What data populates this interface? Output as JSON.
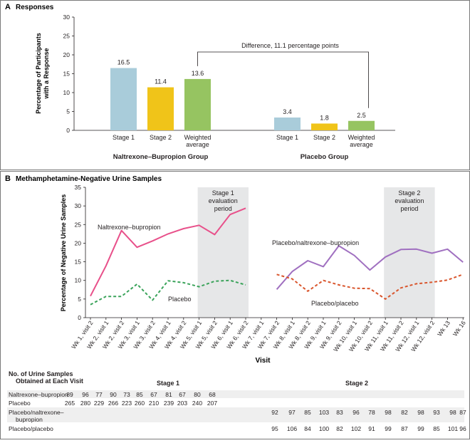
{
  "colors": {
    "stage1": "#a9ccda",
    "stage2": "#f0c419",
    "weighted": "#96c461",
    "nb_line": "#e8508a",
    "placebo_line": "#3aa35a",
    "pl_nb_line": "#a070c0",
    "pl_pl_line": "#d9552c",
    "shade": "#e6e7e8",
    "table_stripe": "#efefef"
  },
  "chart_data": [
    {
      "type": "bar",
      "panel_label": "A",
      "title": "Responses",
      "ylabel": "Percentage of Participants with a Response",
      "ylabel_lines": [
        "Percentage of Participants",
        "with a Response"
      ],
      "ylim": [
        0,
        30
      ],
      "yticks": [
        "0",
        "5",
        "10",
        "15",
        "20",
        "25",
        "30"
      ],
      "groups": [
        {
          "name": "Naltrexone–Bupropion Group",
          "bars": [
            {
              "label": "Stage 1",
              "value": 16.5,
              "value_label": "16.5",
              "color": "#a9ccda"
            },
            {
              "label": "Stage 2",
              "value": 11.4,
              "value_label": "11.4",
              "color": "#f0c419"
            },
            {
              "label": "Weighted average",
              "label_lines": [
                "Weighted",
                "average"
              ],
              "value": 13.6,
              "value_label": "13.6",
              "color": "#96c461"
            }
          ]
        },
        {
          "name": "Placebo Group",
          "bars": [
            {
              "label": "Stage 1",
              "value": 3.4,
              "value_label": "3.4",
              "color": "#a9ccda"
            },
            {
              "label": "Stage 2",
              "value": 1.8,
              "value_label": "1.8",
              "color": "#f0c419"
            },
            {
              "label": "Weighted average",
              "label_lines": [
                "Weighted",
                "average"
              ],
              "value": 2.5,
              "value_label": "2.5",
              "color": "#96c461"
            }
          ]
        }
      ],
      "annotation": "Difference, 11.1 percentage points"
    },
    {
      "type": "line",
      "panel_label": "B",
      "title": "Methamphetamine-Negative Urine Samples",
      "ylabel": "Percentage of Negative Urine Samples",
      "xlabel": "Visit",
      "ylim": [
        0,
        35
      ],
      "yticks": [
        "0",
        "5",
        "10",
        "15",
        "20",
        "25",
        "30",
        "35"
      ],
      "x_categories": [
        "Wk 1, visit 2",
        "Wk 2, visit 1",
        "Wk 2, visit 2",
        "Wk 3, visit 1",
        "Wk 3, visit 2",
        "Wk 4, visit 1",
        "Wk 4, visit 2",
        "Wk 5, visit 1",
        "Wk 5, visit 2",
        "Wk 6, visit 1",
        "Wk 6, visit 2",
        "Wk 7, visit 1",
        "Wk 7, visit 2",
        "Wk 8, visit 1",
        "Wk 8, visit 2",
        "Wk 9, visit 1",
        "Wk 9, visit 2",
        "Wk 10, visit 1",
        "Wk 10, visit 2",
        "Wk 11, visit 1",
        "Wk 11, visit 2",
        "Wk 12, visit 1",
        "Wk 12, visit 2",
        "Wk 13",
        "Wk 16"
      ],
      "shaded_periods": [
        {
          "label_lines": [
            "Stage 1",
            "evaluation",
            "period"
          ],
          "from_index": 7,
          "to_index": 10
        },
        {
          "label_lines": [
            "Stage 2",
            "evaluation",
            "period"
          ],
          "from_index": 19,
          "to_index": 22
        }
      ],
      "series": [
        {
          "name": "Naltrexone–bupropion",
          "style": "solid",
          "color": "#e8508a",
          "start_index": 0,
          "values": [
            5.8,
            13.9,
            23.4,
            18.9,
            20.6,
            22.5,
            23.9,
            24.8,
            22.3,
            27.7,
            29.4
          ]
        },
        {
          "name": "Placebo",
          "style": "dashed",
          "color": "#3aa35a",
          "start_index": 0,
          "values": [
            3.5,
            5.7,
            5.7,
            9.0,
            4.7,
            9.9,
            9.4,
            8.3,
            9.8,
            10.0,
            8.8
          ]
        },
        {
          "name": "Placebo/naltrexone–bupropion",
          "style": "solid",
          "color": "#a070c0",
          "start_index": 12,
          "values": [
            7.6,
            12.4,
            15.3,
            13.7,
            19.3,
            16.7,
            12.8,
            16.3,
            18.3,
            18.4,
            17.3,
            18.4,
            14.9
          ]
        },
        {
          "name": "Placebo/placebo",
          "style": "dashed",
          "color": "#d9552c",
          "start_index": 12,
          "values": [
            11.6,
            10.4,
            7.1,
            10.0,
            8.8,
            7.9,
            7.8,
            5.0,
            8.0,
            9.1,
            9.5,
            10.1,
            11.6
          ]
        }
      ],
      "series_labels": [
        {
          "text": "Naltrexone–bupropion"
        },
        {
          "text": "Placebo"
        },
        {
          "text": "Placebo/naltrexone–bupropion"
        },
        {
          "text": "Placebo/placebo"
        }
      ]
    },
    {
      "type": "table",
      "title_lines": [
        "No. of Urine Samples",
        "Obtained at Each Visit"
      ],
      "stage_headers": [
        "Stage 1",
        "Stage 2"
      ],
      "rows": [
        {
          "label_lines": [
            "Naltrexone–bupropion"
          ],
          "stage": 1,
          "values": [
            "89",
            "96",
            "77",
            "90",
            "73",
            "85",
            "67",
            "81",
            "67",
            "80",
            "68"
          ]
        },
        {
          "label_lines": [
            "Placebo"
          ],
          "stage": 1,
          "values": [
            "265",
            "280",
            "229",
            "266",
            "223",
            "260",
            "210",
            "239",
            "203",
            "240",
            "207"
          ]
        },
        {
          "label_lines": [
            "Placebo/naltrexone–",
            "bupropion"
          ],
          "stage": 2,
          "values": [
            "92",
            "97",
            "85",
            "103",
            "83",
            "96",
            "78",
            "98",
            "82",
            "98",
            "93",
            "98",
            "87"
          ]
        },
        {
          "label_lines": [
            "Placebo/placebo"
          ],
          "stage": 2,
          "values": [
            "95",
            "106",
            "84",
            "100",
            "82",
            "102",
            "91",
            "99",
            "87",
            "99",
            "85",
            "101",
            "96"
          ]
        }
      ]
    }
  ]
}
